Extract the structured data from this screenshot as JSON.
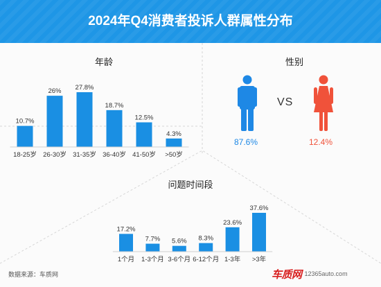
{
  "header": {
    "title": "2024年Q4消费者投诉人群属性分布"
  },
  "sections": {
    "age_title": "年龄",
    "gender_title": "性别",
    "duration_title": "问题时间段"
  },
  "gender": {
    "male_pct": "87.6%",
    "female_pct": "12.4%",
    "vs_label": "VS",
    "male_color": "#1e88e5",
    "female_color": "#f0523a"
  },
  "footer": {
    "source": "数据来源：车质网",
    "logo_text": "车质网",
    "logo_url": "12365auto.com"
  },
  "colors": {
    "bar": "#1a8fe3",
    "header": "#1e96e6"
  },
  "chart_data": [
    {
      "type": "bar",
      "name": "age",
      "categories": [
        "18-25岁",
        "26-30岁",
        "31-35岁",
        "36-40岁",
        "41-50岁",
        ">50岁"
      ],
      "values": [
        10.7,
        26,
        27.8,
        18.7,
        12.5,
        4.3
      ],
      "labels": [
        "10.7%",
        "26%",
        "27.8%",
        "18.7%",
        "12.5%",
        "4.3%"
      ],
      "title": "年龄",
      "ylim": [
        0,
        27.8
      ]
    },
    {
      "type": "bar",
      "name": "duration",
      "categories": [
        "1个月",
        "1-3个月",
        "3-6个月",
        "6-12个月",
        "1-3年",
        ">3年"
      ],
      "values": [
        17.2,
        7.7,
        5.6,
        8.3,
        23.6,
        37.6
      ],
      "labels": [
        "17.2%",
        "7.7%",
        "5.6%",
        "8.3%",
        "23.6%",
        "37.6%"
      ],
      "title": "问题时间段",
      "ylim": [
        0,
        37.6
      ]
    }
  ]
}
